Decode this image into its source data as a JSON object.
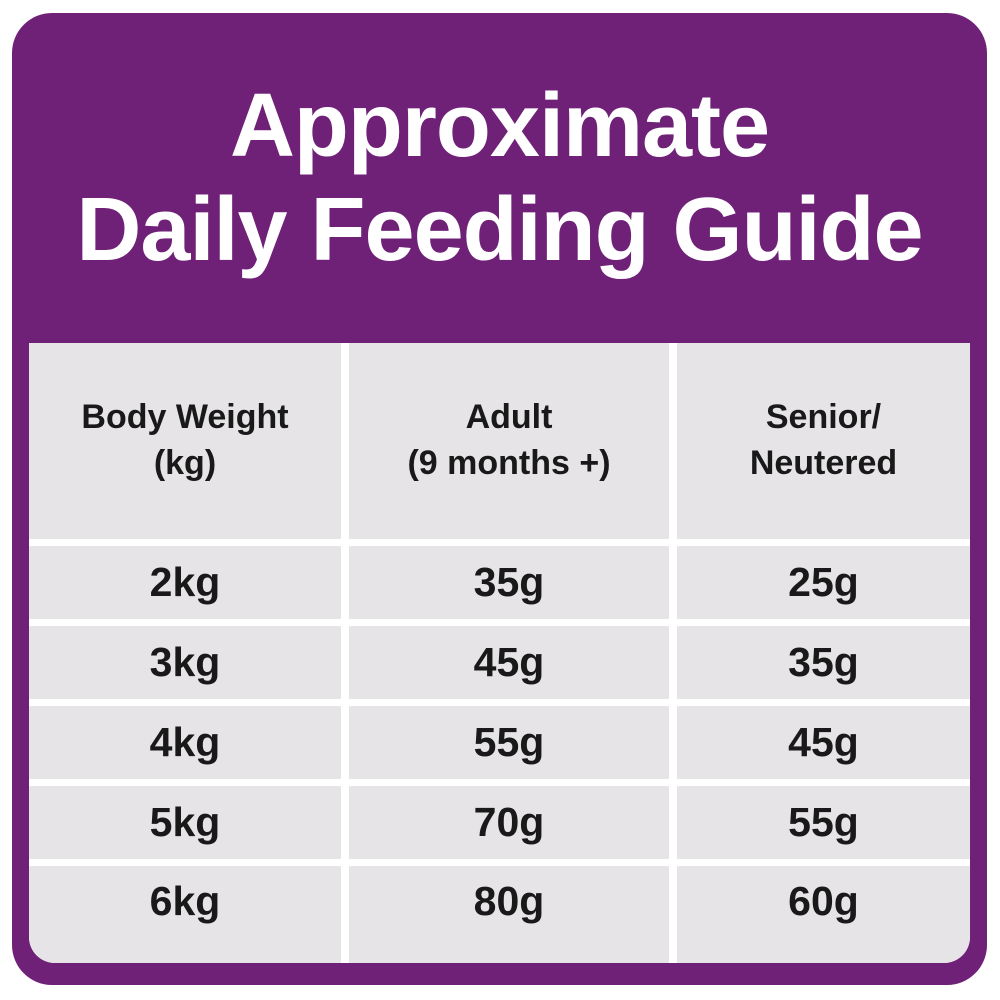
{
  "header": {
    "title_line1": "Approximate",
    "title_line2": "Daily Feeding Guide"
  },
  "table": {
    "col_headers": [
      {
        "line1": "Body Weight",
        "line2": "(kg)"
      },
      {
        "line1": "Adult",
        "line2": "(9 months +)"
      },
      {
        "line1": "Senior/",
        "line2": "Neutered"
      }
    ],
    "rows": [
      {
        "weight": "2kg",
        "adult": "35g",
        "senior": "25g"
      },
      {
        "weight": "3kg",
        "adult": "45g",
        "senior": "35g"
      },
      {
        "weight": "4kg",
        "adult": "55g",
        "senior": "45g"
      },
      {
        "weight": "5kg",
        "adult": "70g",
        "senior": "55g"
      },
      {
        "weight": "6kg",
        "adult": "80g",
        "senior": "60g"
      }
    ]
  },
  "colors": {
    "card_purple": "#6F2077",
    "cell_gray": "#E6E4E7",
    "gutter_white": "#FFFFFF",
    "text_dark": "#191919",
    "title_white": "#FFFFFF"
  },
  "chart_data": {
    "type": "table",
    "title": "Approximate Daily Feeding Guide",
    "columns": [
      "Body Weight (kg)",
      "Adult (9 months +)",
      "Senior/Neutered"
    ],
    "rows": [
      [
        "2kg",
        "35g",
        "25g"
      ],
      [
        "3kg",
        "45g",
        "35g"
      ],
      [
        "4kg",
        "55g",
        "45g"
      ],
      [
        "5kg",
        "70g",
        "55g"
      ],
      [
        "6kg",
        "80g",
        "60g"
      ]
    ],
    "units": {
      "body_weight": "kg",
      "portions": "g per day"
    }
  }
}
